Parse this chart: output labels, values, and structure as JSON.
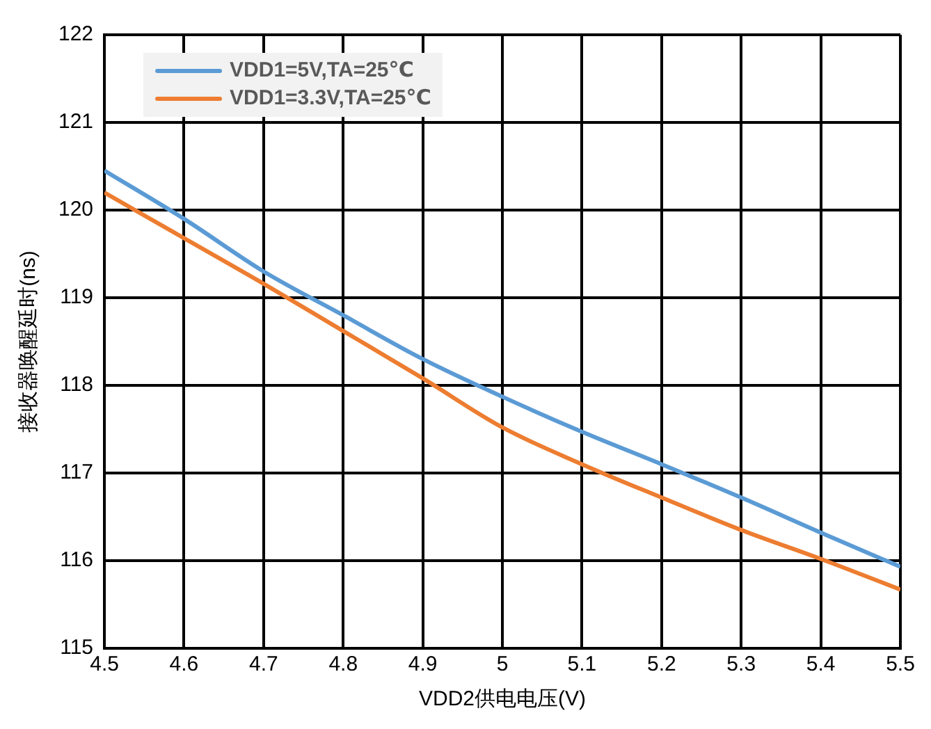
{
  "chart_data": {
    "type": "line",
    "xlabel": "VDD2供电电压(V)",
    "ylabel": "接收器唤醒延时(ns)",
    "x": [
      4.5,
      4.6,
      4.7,
      4.8,
      4.9,
      5.0,
      5.1,
      5.2,
      5.3,
      5.4,
      5.5
    ],
    "series": [
      {
        "name": "VDD1=5V,TA=25℃",
        "color": "#5b9bd5",
        "values": [
          120.45,
          119.9,
          119.3,
          118.8,
          118.3,
          117.87,
          117.47,
          117.1,
          116.72,
          116.32,
          115.93
        ]
      },
      {
        "name": "VDD1=3.3V,TA=25℃",
        "color": "#ed7d31",
        "values": [
          120.2,
          119.68,
          119.16,
          118.62,
          118.08,
          117.52,
          117.1,
          116.72,
          116.35,
          116.02,
          115.67
        ]
      }
    ],
    "xlim": [
      4.5,
      5.5
    ],
    "xticks": [
      4.5,
      4.6,
      4.7,
      4.8,
      4.9,
      {
        "value": 5,
        "label": "5"
      },
      5.1,
      5.2,
      5.3,
      5.4,
      5.5
    ],
    "ylim": [
      115,
      122
    ],
    "yticks": [
      115,
      116,
      117,
      118,
      119,
      120,
      121,
      122
    ],
    "grid": true,
    "legend": "top left",
    "marker": "none",
    "line_style": "solid"
  }
}
